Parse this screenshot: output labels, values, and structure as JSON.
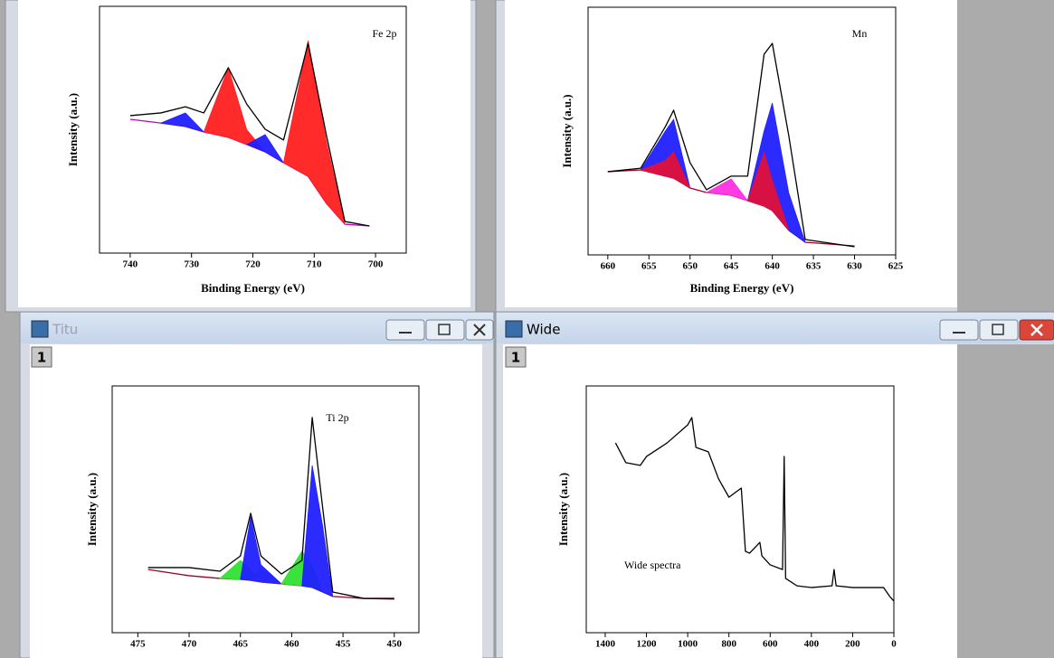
{
  "windows": [
    {
      "title": "Titu",
      "badge": "1"
    },
    {
      "title": "Wide",
      "badge": "1"
    }
  ],
  "chart_data": [
    {
      "type": "line",
      "annotation": "Fe 2p",
      "ylabel": "Intensity (a.u.)",
      "xlabel": "Binding Energy (eV)",
      "xlim": [
        745,
        695
      ],
      "ylim": [
        0,
        100
      ],
      "xticks": [
        740,
        730,
        720,
        710,
        700
      ],
      "x": [
        740,
        735,
        731,
        728,
        724,
        721,
        718,
        715,
        711,
        708,
        705,
        701
      ],
      "series": [
        {
          "color": "#c000c0",
          "values": [
            54.2,
            52.7,
            51.3,
            49.1,
            46.9,
            44.0,
            41.0,
            36.6,
            31.1,
            20.1,
            11.7,
            11.0
          ]
        },
        {
          "color": "#2020ff",
          "area": true,
          "values": [
            null,
            52.7,
            56.8,
            49.1,
            null,
            null,
            null,
            null,
            null,
            null,
            null,
            null
          ]
        },
        {
          "color": "#ff2020",
          "area": true,
          "values": [
            null,
            null,
            null,
            49.1,
            75.1,
            50.0,
            41.0,
            null,
            null,
            null,
            null,
            null
          ]
        },
        {
          "color": "#2020ff",
          "area": true,
          "values": [
            null,
            null,
            null,
            null,
            null,
            44.0,
            48.0,
            36.6,
            null,
            null,
            null,
            null
          ]
        },
        {
          "color": "#ff2020",
          "area": true,
          "values": [
            null,
            null,
            null,
            null,
            null,
            null,
            null,
            36.6,
            86.1,
            45.0,
            11.7,
            null
          ]
        },
        {
          "color": "#000000",
          "values": [
            55.7,
            56.8,
            59.3,
            56.8,
            75.1,
            60.4,
            50.2,
            45.8,
            85.0,
            47.6,
            12.8,
            11.0
          ]
        }
      ]
    },
    {
      "type": "line",
      "annotation": "Mn",
      "ylabel": "Intensity (a.u.)",
      "xlabel": "Binding Energy (eV)",
      "xlim": [
        662.4,
        625
      ],
      "ylim": [
        0,
        100
      ],
      "xticks": [
        660,
        655,
        650,
        645,
        640,
        635,
        630,
        625
      ],
      "x": [
        660,
        656,
        653,
        652,
        650,
        648,
        645,
        643,
        641,
        640,
        638,
        636,
        630
      ],
      "series": [
        {
          "color": "#a00020",
          "values": [
            33.6,
            34.3,
            31.8,
            31.0,
            27.0,
            25.2,
            24.1,
            21.9,
            19.7,
            17.9,
            9.9,
            5.1,
            3.6
          ]
        },
        {
          "color": "#2020ff",
          "area": true,
          "values": [
            null,
            34.3,
            50.0,
            54.7,
            27.0,
            null,
            null,
            null,
            null,
            null,
            null,
            null,
            null
          ]
        },
        {
          "color": "#e0103a",
          "area": true,
          "values": [
            null,
            34.3,
            38.0,
            41.6,
            27.0,
            null,
            null,
            null,
            null,
            null,
            null,
            null,
            null
          ]
        },
        {
          "color": "#ff30e0",
          "area": true,
          "values": [
            null,
            null,
            null,
            null,
            null,
            25.2,
            30.7,
            21.9,
            null,
            null,
            null,
            null,
            null
          ]
        },
        {
          "color": "#2020ff",
          "area": true,
          "values": [
            null,
            null,
            null,
            null,
            null,
            null,
            null,
            21.9,
            50.0,
            61.3,
            25.0,
            5.1,
            null
          ]
        },
        {
          "color": "#e0103a",
          "area": true,
          "values": [
            null,
            null,
            null,
            null,
            null,
            null,
            null,
            21.9,
            41.2,
            30.0,
            9.9,
            null,
            null
          ]
        },
        {
          "color": "#000000",
          "values": [
            33.6,
            35.0,
            51.8,
            58.4,
            37.2,
            26.3,
            31.8,
            31.8,
            81.0,
            85.4,
            48.2,
            6.2,
            3.3
          ]
        }
      ]
    },
    {
      "type": "line",
      "annotation": "Ti 2p",
      "ylabel": "Intensity (a.u.)",
      "xlim": [
        477.5,
        447.6
      ],
      "ylim": [
        0,
        100
      ],
      "xticks": [
        475,
        470,
        465,
        460,
        455,
        450
      ],
      "x": [
        474,
        470,
        467,
        465,
        464,
        463,
        461,
        459,
        458,
        457,
        456,
        453,
        450
      ],
      "series": [
        {
          "color": "#a00020",
          "values": [
            25.6,
            23.1,
            22.0,
            21.6,
            21.2,
            20.5,
            19.8,
            19.0,
            18.3,
            16.5,
            14.7,
            13.9,
            13.6
          ]
        },
        {
          "color": "#30e030",
          "area": true,
          "values": [
            null,
            null,
            22.0,
            29.3,
            25.6,
            20.5,
            null,
            null,
            null,
            null,
            null,
            null,
            null
          ]
        },
        {
          "color": "#b0b0b0",
          "area": true,
          "values": [
            null,
            null,
            null,
            null,
            21.2,
            26.4,
            19.8,
            null,
            null,
            null,
            null,
            null,
            null
          ]
        },
        {
          "color": "#2020ff",
          "area": true,
          "values": [
            null,
            null,
            null,
            21.6,
            46.9,
            27.5,
            19.8,
            null,
            null,
            null,
            null,
            null,
            null
          ]
        },
        {
          "color": "#30e030",
          "area": true,
          "values": [
            null,
            null,
            null,
            null,
            null,
            null,
            19.8,
            33.0,
            27.5,
            16.5,
            null,
            null,
            null
          ]
        },
        {
          "color": "#2020ff",
          "area": true,
          "values": [
            null,
            null,
            null,
            null,
            null,
            null,
            null,
            19.0,
            67.8,
            43.6,
            14.7,
            null,
            null
          ]
        },
        {
          "color": "#000000",
          "values": [
            26.4,
            26.4,
            24.9,
            31.1,
            48.4,
            31.1,
            23.8,
            29.3,
            87.2,
            51.3,
            16.5,
            13.9,
            13.9
          ]
        }
      ]
    },
    {
      "type": "line",
      "annotation": "Wide spectra",
      "ylabel": "Intensity (a.u.)",
      "xlim": [
        1492,
        0
      ],
      "ylim": [
        0,
        100
      ],
      "xticks": [
        1400,
        1200,
        1000,
        800,
        600,
        400,
        200,
        0
      ],
      "x": [
        1350,
        1300,
        1230,
        1200,
        1100,
        1000,
        980,
        960,
        900,
        850,
        800,
        740,
        720,
        700,
        650,
        640,
        600,
        540,
        532,
        525,
        470,
        400,
        300,
        290,
        280,
        200,
        100,
        50,
        20,
        0
      ],
      "series": [
        {
          "color": "#000000",
          "values": [
            76.9,
            68.9,
            67.8,
            71.4,
            76.9,
            84.2,
            87.2,
            75.1,
            73.3,
            62.3,
            54.9,
            58.6,
            33.0,
            32.2,
            36.6,
            31.1,
            27.5,
            25.6,
            71.4,
            22.0,
            19.0,
            18.3,
            19.0,
            25.6,
            19.0,
            18.3,
            18.3,
            18.3,
            14.7,
            12.8
          ]
        }
      ]
    }
  ]
}
